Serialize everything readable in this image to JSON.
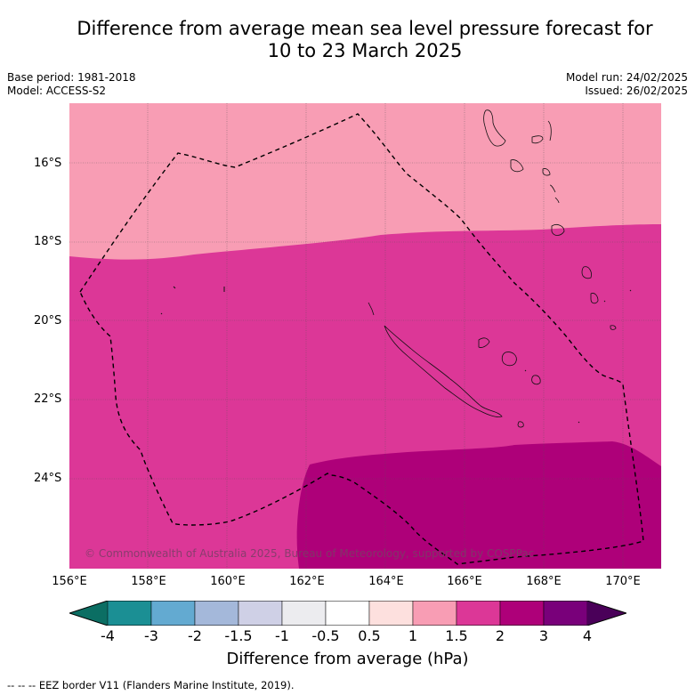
{
  "title_line1": "Difference from average mean sea level pressure forecast for",
  "title_line2": "10 to 23 March 2025",
  "base_period": "Base period: 1981-2018",
  "model": "Model: ACCESS-S2",
  "model_run": "Model run: 24/02/2025",
  "issued": "Issued: 26/02/2025",
  "lat_labels": [
    "16°S",
    "18°S",
    "20°S",
    "22°S",
    "24°S"
  ],
  "lon_labels": [
    "156°E",
    "158°E",
    "160°E",
    "162°E",
    "164°E",
    "166°E",
    "168°E",
    "170°E"
  ],
  "copyright": "© Commonwealth of Australia 2025, Bureau of Meteorology, supported by COSPPac",
  "colorbar": {
    "ticks": [
      "-4",
      "-3",
      "-2",
      "-1.5",
      "-1",
      "-0.5",
      "0.5",
      "1",
      "1.5",
      "2",
      "3",
      "4"
    ],
    "colors": [
      "#1b8f94",
      "#63aad1",
      "#a4b8da",
      "#cfd0e6",
      "#ececef",
      "#ffffff",
      "#fde0de",
      "#f89db4",
      "#dc3797",
      "#ae0079",
      "#79007a"
    ],
    "under_color": "#0b6e63",
    "over_color": "#4a0059",
    "label": "Difference from average (hPa)"
  },
  "map_fill_colors": {
    "band_1_to_1.5": "#f89db4",
    "band_1.5_to_2": "#dc3797",
    "band_2_to_3": "#ae0079"
  },
  "footnote": "--  --  -- EEZ border V11 (Flanders Marine Institute, 2019)."
}
